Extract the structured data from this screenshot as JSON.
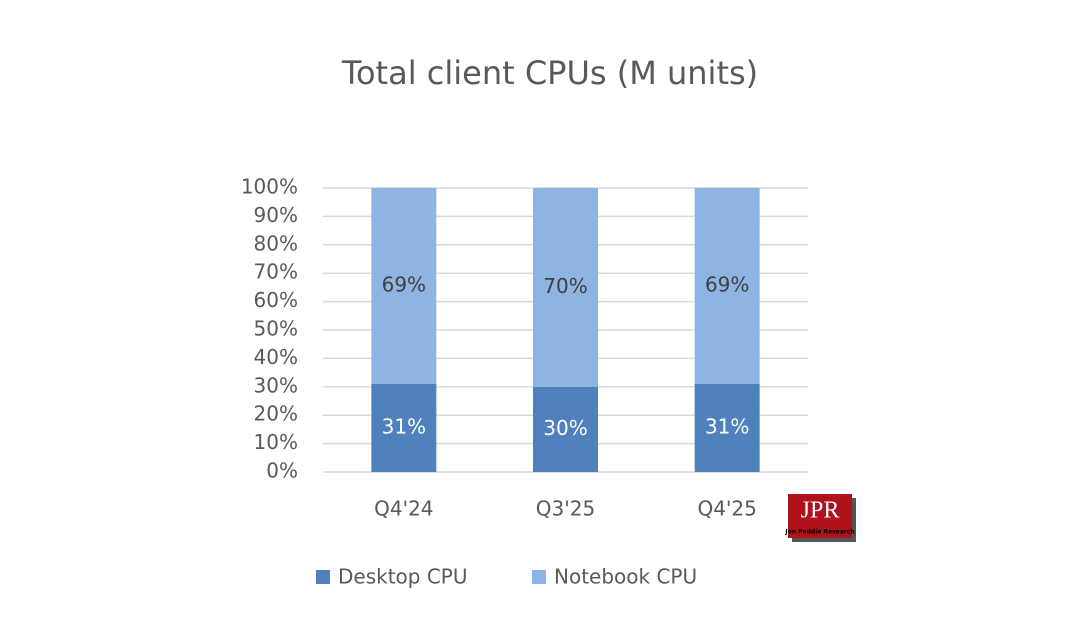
{
  "chart_data": {
    "type": "stacked_bar",
    "title": "Total client CPUs (M units)",
    "categories": [
      "Q4'24",
      "Q3'25",
      "Q4'25"
    ],
    "series": [
      {
        "name": "Desktop CPU",
        "color": "#4f81bd",
        "values": [
          31,
          30,
          31
        ],
        "value_labels": [
          "31%",
          "30%",
          "31%"
        ]
      },
      {
        "name": "Notebook CPU",
        "color": "#8eb4e3",
        "values": [
          69,
          70,
          69
        ],
        "value_labels": [
          "69%",
          "70%",
          "69%"
        ]
      }
    ],
    "ylim": [
      0,
      100
    ],
    "yticks": [
      {
        "value": 0,
        "label": "0%"
      },
      {
        "value": 10,
        "label": "10%"
      },
      {
        "value": 20,
        "label": "20%"
      },
      {
        "value": 30,
        "label": "30%"
      },
      {
        "value": 40,
        "label": "40%"
      },
      {
        "value": 50,
        "label": "50%"
      },
      {
        "value": 60,
        "label": "60%"
      },
      {
        "value": 70,
        "label": "70%"
      },
      {
        "value": 80,
        "label": "80%"
      },
      {
        "value": 90,
        "label": "90%"
      },
      {
        "value": 100,
        "label": "100%"
      }
    ],
    "grid": true,
    "legend": "bottom",
    "logo": {
      "text": "JPR",
      "subtitle": "Jon Peddie Research"
    }
  }
}
